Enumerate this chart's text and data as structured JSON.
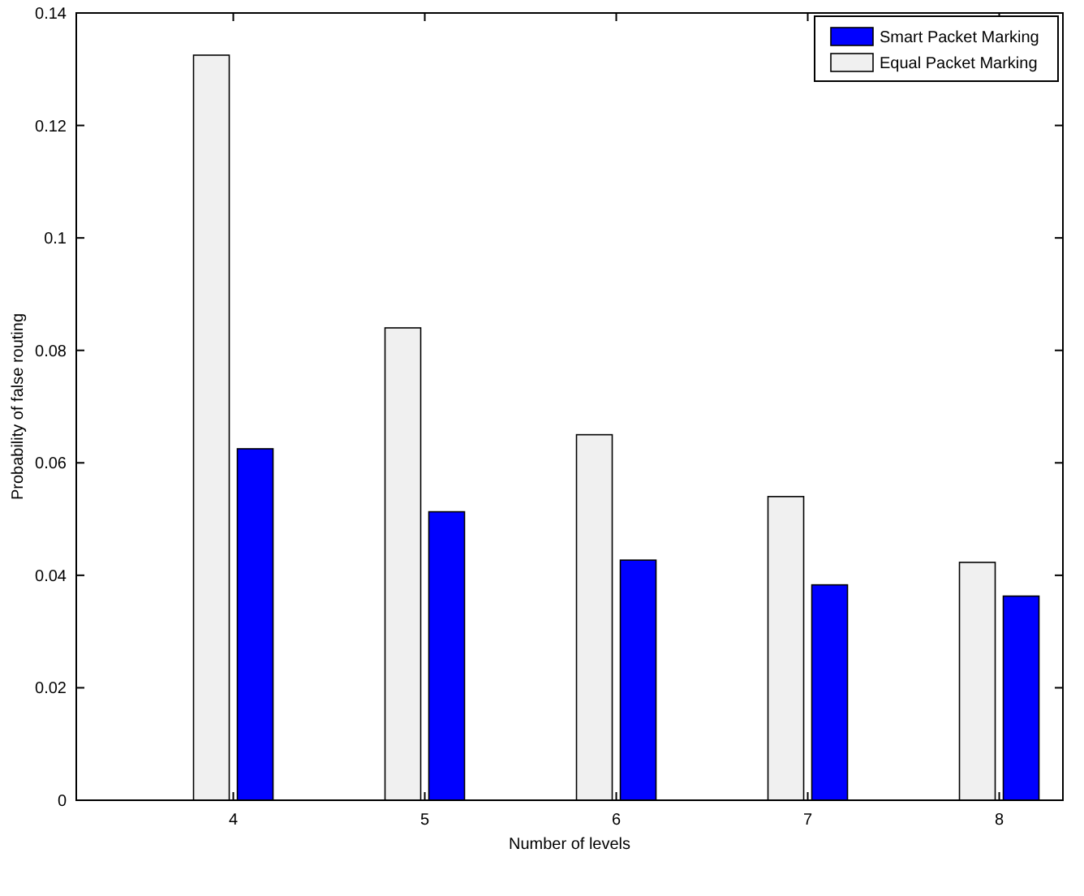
{
  "chart_data": {
    "type": "bar",
    "xlabel": "Number of levels",
    "ylabel": "Probability of false routing",
    "categories": [
      "4",
      "5",
      "6",
      "7",
      "8"
    ],
    "series": [
      {
        "name": "Smart Packet Marking",
        "color": "#0000ff",
        "values": [
          0.0625,
          0.0513,
          0.0427,
          0.0383,
          0.0363
        ]
      },
      {
        "name": "Equal Packet Marking",
        "color": "#f0f0f0",
        "values": [
          0.1325,
          0.084,
          0.065,
          0.054,
          0.0423
        ]
      }
    ],
    "ylim": [
      0,
      0.14
    ],
    "yticks": [
      0,
      0.02,
      0.04,
      0.06,
      0.08,
      0.1,
      0.12,
      0.14
    ],
    "legend": "top right",
    "grid": false
  }
}
